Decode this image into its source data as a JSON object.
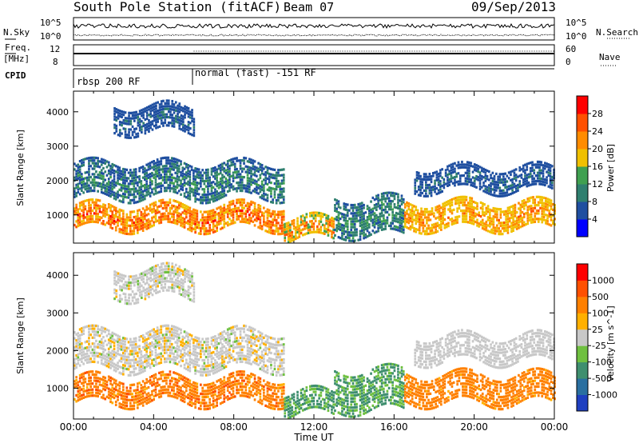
{
  "header": {
    "station": "South Pole Station (fitACF)",
    "beam": "Beam 07",
    "date": "09/Sep/2013"
  },
  "top_panels": {
    "nsky_label": "N.Sky",
    "nsky_ticks": [
      "10^5",
      "10^0"
    ],
    "nsearch_label": "N.Search",
    "nsearch_ticks": [
      "10^5",
      "10^0"
    ],
    "freq_label": "Freq.",
    "freq_unit": "[MHz]",
    "freq_ticks": [
      "12",
      "8"
    ],
    "nave_label": "Nave",
    "nave_ticks": [
      "60",
      "0"
    ],
    "cpid_label": "CPID",
    "cpid_modes": [
      {
        "label": "rbsp 200 RF",
        "start_hour": 0,
        "end_hour": 6
      },
      {
        "label": "normal (fast) -151 RF",
        "start_hour": 6,
        "end_hour": 24
      }
    ]
  },
  "chart_data": [
    {
      "type": "heatmap",
      "title": "",
      "xlabel": "Time UT",
      "ylabel": "Slant Range [km]",
      "xlim": [
        0,
        24
      ],
      "ylim": [
        180,
        4600
      ],
      "x_ticks": [
        "00:00",
        "04:00",
        "08:00",
        "12:00",
        "16:00",
        "20:00",
        "00:00"
      ],
      "y_ticks": [
        "1000",
        "2000",
        "3000",
        "4000"
      ],
      "colorbar": {
        "label": "Power [dB]",
        "ticks": [
          "28",
          "24",
          "20",
          "16",
          "12",
          "8",
          "4"
        ],
        "colors": [
          "#0000ff",
          "#1f4fa0",
          "#2f7f6f",
          "#3fa050",
          "#f0c000",
          "#ff8c00",
          "#ff5000",
          "#ff0000"
        ]
      }
    },
    {
      "type": "heatmap",
      "title": "",
      "xlabel": "Time UT",
      "ylabel": "Slant Range [km]",
      "xlim": [
        0,
        24
      ],
      "ylim": [
        180,
        4600
      ],
      "x_ticks": [
        "00:00",
        "04:00",
        "08:00",
        "12:00",
        "16:00",
        "20:00",
        "00:00"
      ],
      "y_ticks": [
        "1000",
        "2000",
        "3000",
        "4000"
      ],
      "colorbar": {
        "label": "Velocity [m s^-1]",
        "ticks": [
          "1000",
          "500",
          "100",
          "25",
          "-25",
          "-100",
          "-500",
          "-1000"
        ],
        "colors": [
          "#1f3fc0",
          "#2a6fa0",
          "#3f8f6f",
          "#6fc040",
          "#c8c8c8",
          "#ffb000",
          "#ff8000",
          "#ff5000",
          "#ff0000"
        ]
      }
    }
  ],
  "time_axis_label": "Time UT"
}
